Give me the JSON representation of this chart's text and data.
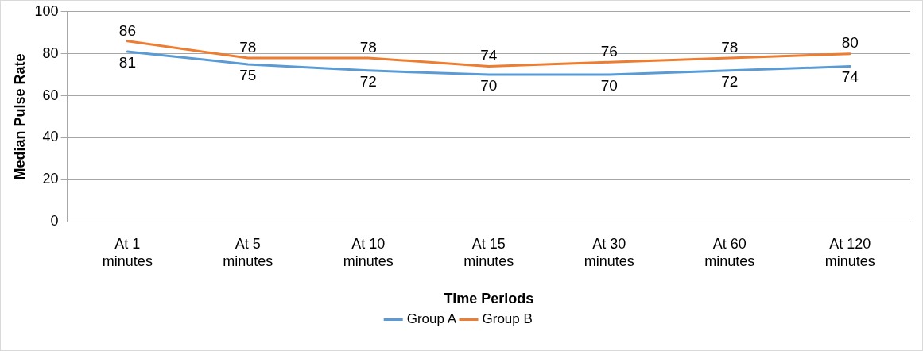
{
  "chart_data": {
    "type": "line",
    "xlabel": "Time Periods",
    "ylabel": "Median Pulse Rate",
    "categories": [
      "At 1 minutes",
      "At 5 minutes",
      "At 10 minutes",
      "At 15 minutes",
      "At 30 minutes",
      "At 60 minutes",
      "At 120 minutes"
    ],
    "series": [
      {
        "name": "Group A",
        "color": "#5b9bd5",
        "values": [
          81,
          75,
          72,
          70,
          70,
          72,
          74
        ]
      },
      {
        "name": "Group B",
        "color": "#ed7d31",
        "values": [
          86,
          78,
          78,
          74,
          76,
          78,
          80
        ]
      }
    ],
    "ylim": [
      0,
      100
    ],
    "yticks": [
      0,
      20,
      40,
      60,
      80,
      100
    ],
    "grid": "y",
    "data_labels": true,
    "legend": "bottom",
    "marker": "none",
    "line_style": "solid"
  }
}
